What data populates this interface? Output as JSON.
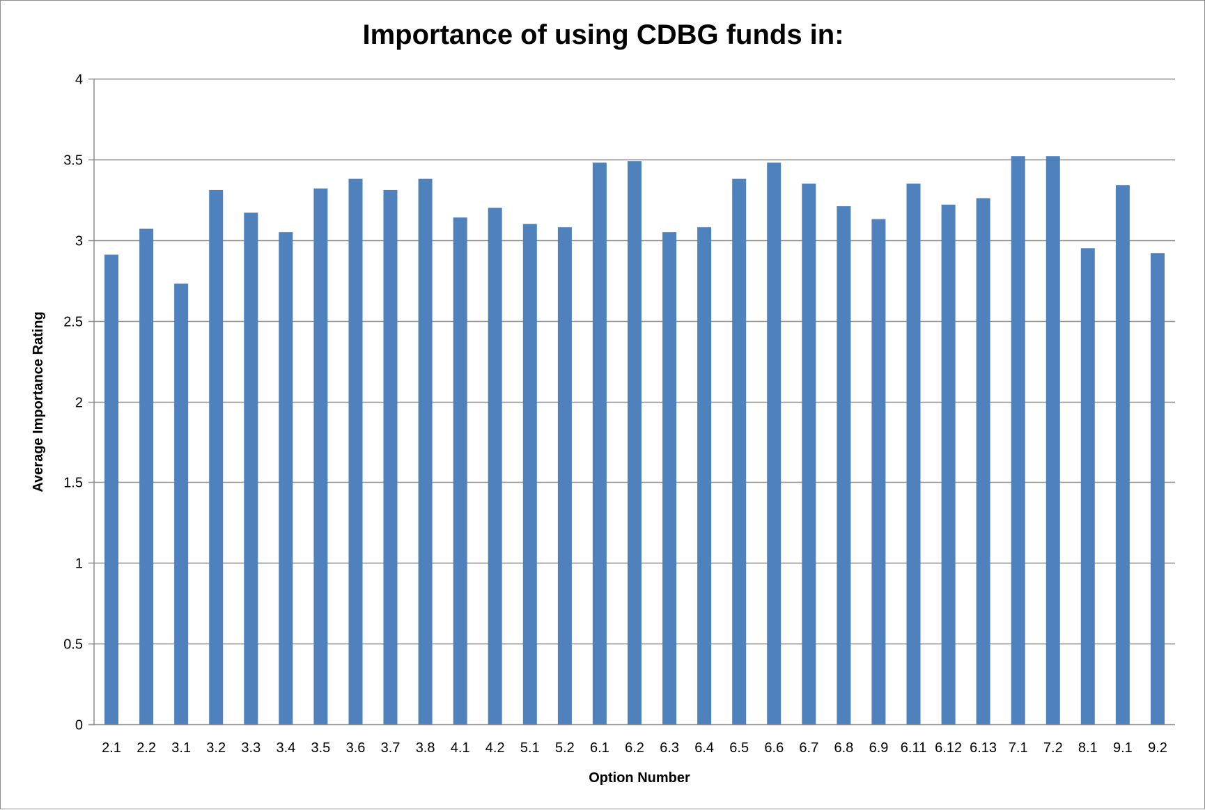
{
  "chart_data": {
    "type": "bar",
    "title": "Importance of using CDBG funds in:",
    "xlabel": "Option Number",
    "ylabel": "Average Importance Rating",
    "ylim": [
      0,
      4
    ],
    "yticks": [
      "0",
      "0.5",
      "1",
      "1.5",
      "2",
      "2.5",
      "3",
      "3.5",
      "4"
    ],
    "grid": true,
    "legend": "none",
    "bar_color": "#4F81BD",
    "categories": [
      "2.1",
      "2.2",
      "3.1",
      "3.2",
      "3.3",
      "3.4",
      "3.5",
      "3.6",
      "3.7",
      "3.8",
      "4.1",
      "4.2",
      "5.1",
      "5.2",
      "6.1",
      "6.2",
      "6.3",
      "6.4",
      "6.5",
      "6.6",
      "6.7",
      "6.8",
      "6.9",
      "6.11",
      "6.12",
      "6.13",
      "7.1",
      "7.2",
      "8.1",
      "9.1",
      "9.2"
    ],
    "values": [
      2.91,
      3.07,
      2.73,
      3.31,
      3.17,
      3.05,
      3.32,
      3.38,
      3.31,
      3.38,
      3.14,
      3.2,
      3.1,
      3.08,
      3.48,
      3.49,
      3.05,
      3.08,
      3.38,
      3.48,
      3.35,
      3.21,
      3.13,
      3.35,
      3.22,
      3.26,
      3.52,
      3.52,
      2.95,
      3.34,
      2.92
    ]
  }
}
